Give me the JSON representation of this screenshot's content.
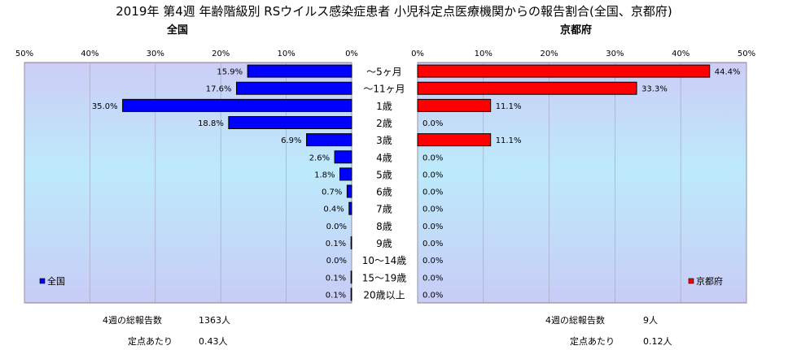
{
  "title": "2019年 第4週 年齢階級別 RSウイルス感染症患者 小児科定点医療機関からの報告割合(全国、京都府)",
  "colors": {
    "national": "#0000ff",
    "kyoto": "#ff0000",
    "plot_bg": "#c8dcf8",
    "bar_stroke": "#000000"
  },
  "chart_data": [
    {
      "type": "bar",
      "orientation": "horizontal",
      "subtitle": "全国",
      "legend": "全国",
      "legend_position": "bottom-left",
      "xlim": [
        0,
        50
      ],
      "x_reversed": true,
      "tick_labels": [
        "50%",
        "40%",
        "30%",
        "20%",
        "10%",
        "0%"
      ],
      "categories": [
        "～5ヶ月",
        "～11ヶ月",
        "1歳",
        "2歳",
        "3歳",
        "4歳",
        "5歳",
        "6歳",
        "7歳",
        "8歳",
        "9歳",
        "10～14歳",
        "15～19歳",
        "20歳以上"
      ],
      "values": [
        15.9,
        17.6,
        35.0,
        18.8,
        6.9,
        2.6,
        1.8,
        0.7,
        0.4,
        0.0,
        0.1,
        0.0,
        0.1,
        0.1
      ],
      "value_labels": [
        "15.9%",
        "17.6%",
        "35.0%",
        "18.8%",
        "6.9%",
        "2.6%",
        "1.8%",
        "0.7%",
        "0.4%",
        "0.0%",
        "0.1%",
        "0.0%",
        "0.1%",
        "0.1%"
      ],
      "total_label": "4週の総報告数",
      "total_value": "1363人",
      "per_site_label": "定点あたり",
      "per_site_value": "0.43人"
    },
    {
      "type": "bar",
      "orientation": "horizontal",
      "subtitle": "京都府",
      "legend": "京都府",
      "legend_position": "bottom-right",
      "xlim": [
        0,
        50
      ],
      "x_reversed": false,
      "tick_labels": [
        "0%",
        "10%",
        "20%",
        "30%",
        "40%",
        "50%"
      ],
      "categories": [
        "～5ヶ月",
        "～11ヶ月",
        "1歳",
        "2歳",
        "3歳",
        "4歳",
        "5歳",
        "6歳",
        "7歳",
        "8歳",
        "9歳",
        "10～14歳",
        "15～19歳",
        "20歳以上"
      ],
      "values": [
        44.4,
        33.3,
        11.1,
        0.0,
        11.1,
        0.0,
        0.0,
        0.0,
        0.0,
        0.0,
        0.0,
        0.0,
        0.0,
        0.0
      ],
      "value_labels": [
        "44.4%",
        "33.3%",
        "11.1%",
        "0.0%",
        "11.1%",
        "0.0%",
        "0.0%",
        "0.0%",
        "0.0%",
        "0.0%",
        "0.0%",
        "0.0%",
        "0.0%",
        "0.0%"
      ],
      "total_label": "4週の総報告数",
      "total_value": "9人",
      "per_site_label": "定点あたり",
      "per_site_value": "0.12人"
    }
  ]
}
